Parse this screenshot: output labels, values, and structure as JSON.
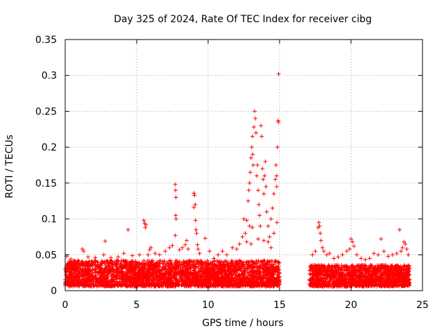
{
  "chart_data": {
    "type": "scatter",
    "title": "Day 325 of 2024, Rate Of TEC Index for receiver cibg",
    "xlabel": "GPS time / hours",
    "ylabel": "ROTI / TECUs",
    "xlim": [
      0,
      25
    ],
    "ylim": [
      0,
      0.35
    ],
    "x_ticks": [
      0,
      5,
      10,
      15,
      20,
      25
    ],
    "y_ticks": [
      0,
      0.05,
      0.1,
      0.15,
      0.2,
      0.25,
      0.3,
      0.35
    ],
    "x_tick_labels": [
      "0",
      "5",
      "10",
      "15",
      "20",
      "25"
    ],
    "y_tick_labels": [
      "0",
      "0.05",
      "0.1",
      "0.15",
      "0.2",
      "0.25",
      "0.3",
      "0.35"
    ],
    "grid": true,
    "marker": "+",
    "color": "#ff0000",
    "series": [
      {
        "name": "cibg",
        "baseline_segments": [
          {
            "x_start": 0.0,
            "x_end": 15.0,
            "min": 0.006,
            "max": 0.042
          },
          {
            "x_start": 17.1,
            "x_end": 24.1,
            "min": 0.006,
            "max": 0.036
          }
        ],
        "points": [
          [
            0.1,
            0.048
          ],
          [
            0.4,
            0.044
          ],
          [
            0.9,
            0.042
          ],
          [
            1.2,
            0.058
          ],
          [
            1.3,
            0.055
          ],
          [
            1.6,
            0.047
          ],
          [
            2.1,
            0.046
          ],
          [
            2.7,
            0.05
          ],
          [
            2.8,
            0.069
          ],
          [
            3.2,
            0.046
          ],
          [
            3.7,
            0.047
          ],
          [
            4.1,
            0.052
          ],
          [
            4.4,
            0.085
          ],
          [
            4.7,
            0.049
          ],
          [
            5.2,
            0.05
          ],
          [
            5.5,
            0.098
          ],
          [
            5.55,
            0.094
          ],
          [
            5.6,
            0.088
          ],
          [
            5.65,
            0.092
          ],
          [
            5.8,
            0.05
          ],
          [
            5.9,
            0.057
          ],
          [
            6.0,
            0.06
          ],
          [
            6.3,
            0.052
          ],
          [
            6.6,
            0.05
          ],
          [
            7.0,
            0.055
          ],
          [
            7.3,
            0.06
          ],
          [
            7.5,
            0.063
          ],
          [
            7.7,
            0.148
          ],
          [
            7.72,
            0.14
          ],
          [
            7.75,
            0.13
          ],
          [
            7.73,
            0.105
          ],
          [
            7.76,
            0.1
          ],
          [
            7.7,
            0.077
          ],
          [
            8.0,
            0.057
          ],
          [
            8.2,
            0.06
          ],
          [
            8.4,
            0.064
          ],
          [
            8.5,
            0.07
          ],
          [
            8.6,
            0.058
          ],
          [
            9.0,
            0.136
          ],
          [
            9.05,
            0.133
          ],
          [
            9.1,
            0.12
          ],
          [
            9.0,
            0.116
          ],
          [
            9.12,
            0.098
          ],
          [
            9.15,
            0.085
          ],
          [
            9.2,
            0.08
          ],
          [
            9.25,
            0.064
          ],
          [
            9.3,
            0.058
          ],
          [
            9.4,
            0.052
          ],
          [
            9.8,
            0.073
          ],
          [
            10.1,
            0.055
          ],
          [
            10.4,
            0.045
          ],
          [
            10.7,
            0.05
          ],
          [
            11.0,
            0.055
          ],
          [
            11.3,
            0.05
          ],
          [
            11.7,
            0.06
          ],
          [
            12.0,
            0.058
          ],
          [
            12.2,
            0.065
          ],
          [
            12.4,
            0.075
          ],
          [
            12.5,
            0.1
          ],
          [
            12.6,
            0.08
          ],
          [
            12.7,
            0.098
          ],
          [
            12.8,
            0.125
          ],
          [
            12.85,
            0.14
          ],
          [
            12.9,
            0.15
          ],
          [
            12.95,
            0.165
          ],
          [
            13.0,
            0.185
          ],
          [
            13.05,
            0.2
          ],
          [
            13.1,
            0.215
          ],
          [
            13.12,
            0.19
          ],
          [
            13.15,
            0.175
          ],
          [
            13.2,
            0.228
          ],
          [
            13.25,
            0.25
          ],
          [
            13.3,
            0.24
          ],
          [
            13.35,
            0.22
          ],
          [
            13.4,
            0.16
          ],
          [
            13.45,
            0.175
          ],
          [
            13.5,
            0.14
          ],
          [
            13.55,
            0.12
          ],
          [
            13.6,
            0.105
          ],
          [
            13.65,
            0.09
          ],
          [
            13.7,
            0.23
          ],
          [
            13.75,
            0.215
          ],
          [
            13.8,
            0.17
          ],
          [
            13.85,
            0.155
          ],
          [
            13.9,
            0.135
          ],
          [
            13.95,
            0.16
          ],
          [
            14.0,
            0.18
          ],
          [
            14.05,
            0.145
          ],
          [
            14.1,
            0.11
          ],
          [
            14.2,
            0.09
          ],
          [
            14.3,
            0.075
          ],
          [
            14.4,
            0.1
          ],
          [
            14.5,
            0.115
          ],
          [
            14.6,
            0.135
          ],
          [
            14.7,
            0.155
          ],
          [
            14.75,
            0.175
          ],
          [
            14.8,
            0.16
          ],
          [
            14.85,
            0.2
          ],
          [
            14.9,
            0.237
          ],
          [
            14.92,
            0.235
          ],
          [
            14.93,
            0.302
          ],
          [
            14.8,
            0.145
          ],
          [
            14.82,
            0.095
          ],
          [
            13.5,
            0.072
          ],
          [
            13.9,
            0.07
          ],
          [
            14.2,
            0.068
          ],
          [
            12.7,
            0.068
          ],
          [
            13.0,
            0.065
          ],
          [
            14.6,
            0.08
          ],
          [
            14.4,
            0.06
          ],
          [
            13.1,
            0.088
          ],
          [
            12.9,
            0.09
          ],
          [
            17.3,
            0.05
          ],
          [
            17.5,
            0.055
          ],
          [
            17.7,
            0.088
          ],
          [
            17.75,
            0.095
          ],
          [
            17.8,
            0.09
          ],
          [
            17.85,
            0.08
          ],
          [
            17.9,
            0.07
          ],
          [
            18.0,
            0.06
          ],
          [
            18.1,
            0.055
          ],
          [
            18.3,
            0.05
          ],
          [
            18.5,
            0.052
          ],
          [
            18.8,
            0.045
          ],
          [
            19.1,
            0.047
          ],
          [
            19.4,
            0.05
          ],
          [
            19.7,
            0.055
          ],
          [
            19.9,
            0.058
          ],
          [
            20.0,
            0.072
          ],
          [
            20.1,
            0.068
          ],
          [
            20.2,
            0.062
          ],
          [
            20.4,
            0.05
          ],
          [
            20.7,
            0.045
          ],
          [
            21.0,
            0.043
          ],
          [
            21.3,
            0.045
          ],
          [
            21.6,
            0.052
          ],
          [
            21.9,
            0.05
          ],
          [
            22.1,
            0.072
          ],
          [
            22.3,
            0.055
          ],
          [
            22.6,
            0.048
          ],
          [
            22.9,
            0.05
          ],
          [
            23.2,
            0.052
          ],
          [
            23.4,
            0.085
          ],
          [
            23.5,
            0.055
          ],
          [
            23.6,
            0.06
          ],
          [
            23.7,
            0.068
          ],
          [
            23.8,
            0.065
          ],
          [
            23.9,
            0.058
          ],
          [
            24.0,
            0.05
          ]
        ]
      }
    ]
  }
}
